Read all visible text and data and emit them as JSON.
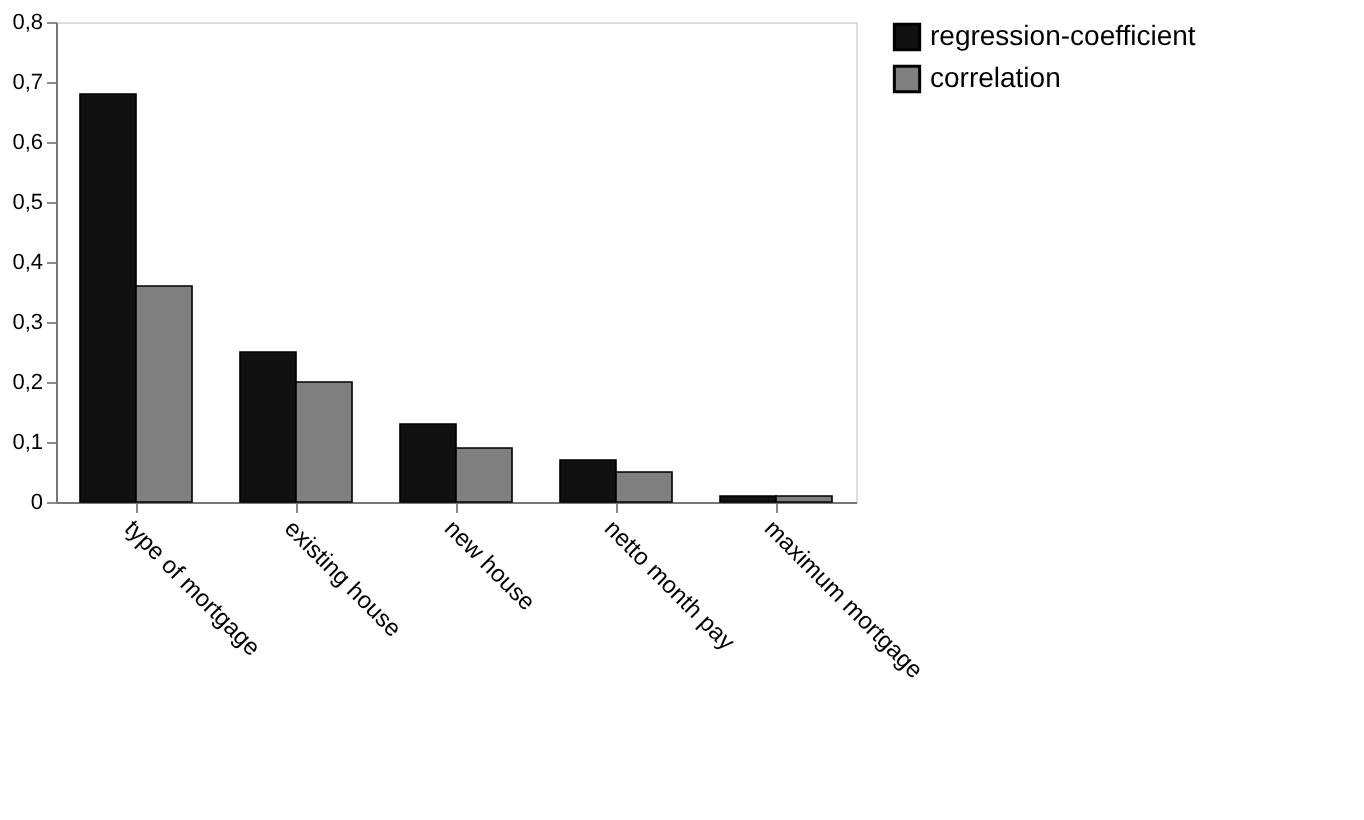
{
  "chart_data": {
    "type": "bar",
    "categories": [
      "type of mortgage",
      "existing house",
      "new house",
      "netto month pay",
      "maximum mortgage"
    ],
    "series": [
      {
        "name": "regression-coefficient",
        "color": "#111111",
        "values": [
          0.68,
          0.25,
          0.13,
          0.07,
          0.01
        ]
      },
      {
        "name": "correlation",
        "color": "#808080",
        "values": [
          0.36,
          0.2,
          0.09,
          0.05,
          0.01
        ]
      }
    ],
    "ylim": [
      0,
      0.8
    ],
    "yticks": [
      0,
      {
        "value": 0.1,
        "label": "0,1"
      },
      {
        "value": 0.2,
        "label": "0,2"
      },
      {
        "value": 0.3,
        "label": "0,3"
      },
      {
        "value": 0.4,
        "label": "0,4"
      },
      {
        "value": 0.5,
        "label": "0,5"
      },
      {
        "value": 0.6,
        "label": "0,6"
      },
      {
        "value": 0.7,
        "label": "0,7"
      },
      {
        "value": 0.8,
        "label": "0,8"
      }
    ],
    "grid": false,
    "legend": "right"
  }
}
